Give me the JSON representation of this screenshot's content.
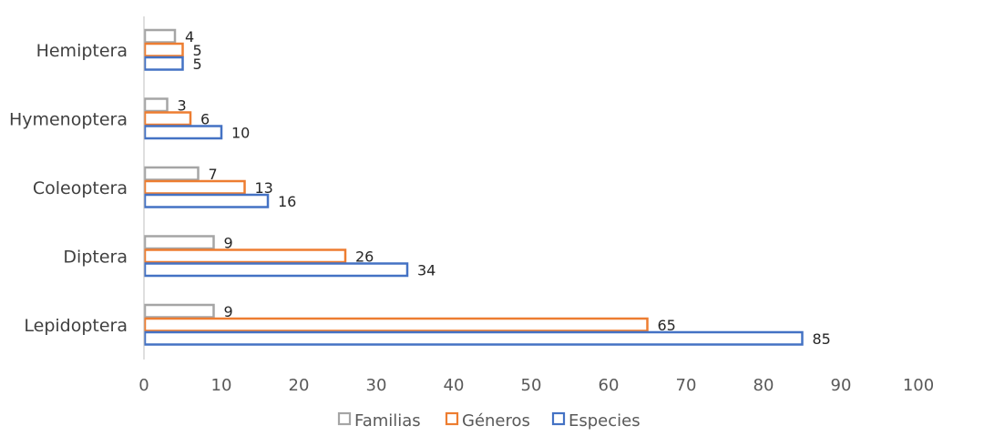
{
  "chart_data": {
    "type": "bar",
    "orientation": "horizontal",
    "categories": [
      "Lepidoptera",
      "Diptera",
      "Coleoptera",
      "Hymenoptera",
      "Hemiptera"
    ],
    "series": [
      {
        "name": "Familias",
        "values": [
          9,
          9,
          7,
          3,
          4
        ],
        "color": "#a5a5a5"
      },
      {
        "name": "Géneros",
        "values": [
          65,
          26,
          13,
          6,
          5
        ],
        "color": "#ed7d31"
      },
      {
        "name": "Especies",
        "values": [
          85,
          34,
          16,
          10,
          5
        ],
        "color": "#4472c4"
      }
    ],
    "xlim": [
      0,
      100
    ],
    "xticks": [
      0,
      10,
      20,
      30,
      40,
      50,
      60,
      70,
      80,
      90,
      100
    ],
    "grid": false,
    "legend": "bottom",
    "data_labels": true,
    "bar_style": "outline"
  }
}
